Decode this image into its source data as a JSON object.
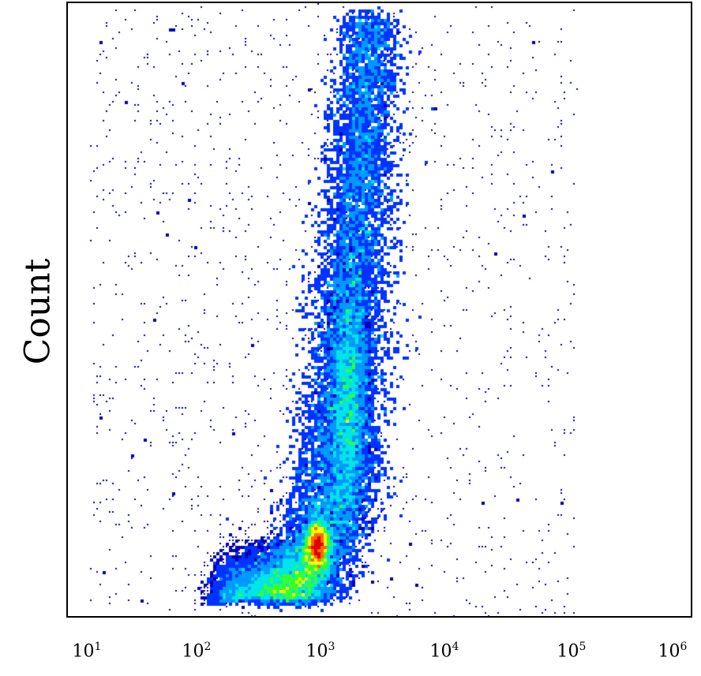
{
  "chart_data": {
    "type": "scatter",
    "subtype": "density-dot-plot",
    "title": "",
    "xlabel": "",
    "ylabel": "Count",
    "x_scale": "log",
    "xlim": [
      10,
      1000000
    ],
    "x_ticks": [
      {
        "value": 10,
        "base": "10",
        "exp": "1"
      },
      {
        "value": 100,
        "base": "10",
        "exp": "2"
      },
      {
        "value": 1000,
        "base": "10",
        "exp": "3"
      },
      {
        "value": 10000,
        "base": "10",
        "exp": "4"
      },
      {
        "value": 100000,
        "base": "10",
        "exp": "5"
      },
      {
        "value": 1000000,
        "base": "10",
        "exp": "6"
      }
    ],
    "y_ticks": [],
    "grid": false,
    "legend": "none",
    "colormap": [
      "#0000b4",
      "#0033ff",
      "#0099ff",
      "#00e5e5",
      "#33ff33",
      "#ffff00",
      "#ff6600",
      "#e00000"
    ],
    "density_clusters": [
      {
        "x": 950,
        "y_frac": 0.12,
        "spread_log": 0.09,
        "spread_y": 0.035,
        "density": "peak (red)"
      },
      {
        "x": 1700,
        "y_frac": 0.36,
        "spread_log": 0.1,
        "spread_y": 0.12,
        "density": "medium (cyan)"
      },
      {
        "x": 300,
        "y_frac": 0.05,
        "spread_log": 0.25,
        "spread_y": 0.03,
        "density": "low (blue)"
      }
    ]
  }
}
